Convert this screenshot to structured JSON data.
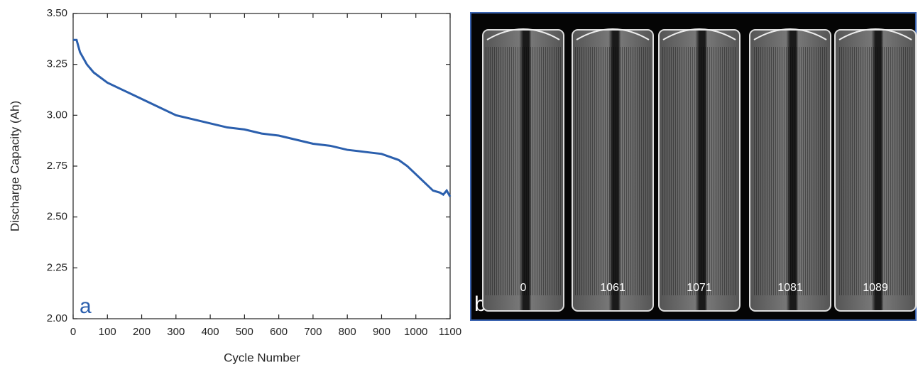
{
  "chart_data": {
    "type": "line",
    "x_label": "Cycle Number",
    "y_label": "Discharge Capacity (Ah)",
    "annotation": "a",
    "xlim": [
      0,
      1100
    ],
    "xticks": [
      0,
      100,
      200,
      300,
      400,
      500,
      600,
      700,
      800,
      900,
      1000,
      1100
    ],
    "ylim": [
      2.0,
      3.5
    ],
    "yticks": [
      {
        "value": 2.0,
        "label": "2.00"
      },
      {
        "value": 2.25,
        "label": "2.25"
      },
      {
        "value": 2.5,
        "label": "2.50"
      },
      {
        "value": 2.75,
        "label": "2.75"
      },
      {
        "value": 3.0,
        "label": "3.00"
      },
      {
        "value": 3.25,
        "label": "3.25"
      },
      {
        "value": 3.5,
        "label": "3.50"
      }
    ],
    "x": [
      0,
      10,
      20,
      40,
      60,
      100,
      150,
      200,
      250,
      300,
      350,
      400,
      450,
      500,
      550,
      600,
      650,
      700,
      750,
      800,
      850,
      900,
      950,
      975,
      1000,
      1025,
      1050,
      1070,
      1080,
      1090,
      1100
    ],
    "series": [
      {
        "color": "#2b5fad",
        "values": [
          3.37,
          3.37,
          3.31,
          3.25,
          3.21,
          3.16,
          3.12,
          3.08,
          3.04,
          3.0,
          2.98,
          2.96,
          2.94,
          2.93,
          2.91,
          2.9,
          2.88,
          2.86,
          2.85,
          2.83,
          2.82,
          2.81,
          2.78,
          2.75,
          2.71,
          2.67,
          2.63,
          2.62,
          2.61,
          2.63,
          2.6
        ]
      }
    ]
  },
  "image_panel": {
    "label": "b",
    "cell_labels": [
      "0",
      "1061",
      "1071",
      "1081",
      "1089"
    ]
  }
}
